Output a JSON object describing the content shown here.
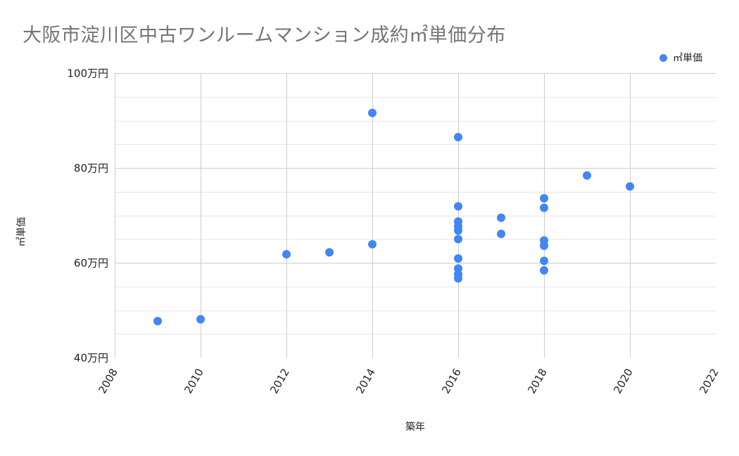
{
  "chart_data": {
    "type": "scatter",
    "title": "大阪市淀川区中古ワンルームマンション成約㎡単価分布",
    "xlabel": "築年",
    "ylabel": "㎡単価",
    "legend": [
      "㎡単価"
    ],
    "legend_position": "top-right",
    "grid": true,
    "xlim": [
      2008,
      2022
    ],
    "ylim": [
      40,
      100
    ],
    "x_ticks": [
      "2008",
      "2010",
      "2012",
      "2014",
      "2016",
      "2018",
      "2020",
      "2022"
    ],
    "y_ticks": [
      "40万円",
      "60万円",
      "80万円",
      "100万円"
    ],
    "y_unit": "万円",
    "series": [
      {
        "name": "㎡単価",
        "color": "#4285f4",
        "points": [
          {
            "x": 2009,
            "y": 47.7
          },
          {
            "x": 2010,
            "y": 48.1
          },
          {
            "x": 2012,
            "y": 61.8
          },
          {
            "x": 2013,
            "y": 62.2
          },
          {
            "x": 2014,
            "y": 91.6
          },
          {
            "x": 2014,
            "y": 63.9
          },
          {
            "x": 2016,
            "y": 86.5
          },
          {
            "x": 2016,
            "y": 71.9
          },
          {
            "x": 2016,
            "y": 68.7
          },
          {
            "x": 2016,
            "y": 67.7
          },
          {
            "x": 2016,
            "y": 66.8
          },
          {
            "x": 2016,
            "y": 65.0
          },
          {
            "x": 2016,
            "y": 60.9
          },
          {
            "x": 2016,
            "y": 58.8
          },
          {
            "x": 2016,
            "y": 57.6
          },
          {
            "x": 2016,
            "y": 56.7
          },
          {
            "x": 2017,
            "y": 69.5
          },
          {
            "x": 2017,
            "y": 66.1
          },
          {
            "x": 2018,
            "y": 73.6
          },
          {
            "x": 2018,
            "y": 71.6
          },
          {
            "x": 2018,
            "y": 64.7
          },
          {
            "x": 2018,
            "y": 63.6
          },
          {
            "x": 2018,
            "y": 60.4
          },
          {
            "x": 2018,
            "y": 58.4
          },
          {
            "x": 2019,
            "y": 78.4
          },
          {
            "x": 2020,
            "y": 76.1
          }
        ]
      }
    ]
  }
}
